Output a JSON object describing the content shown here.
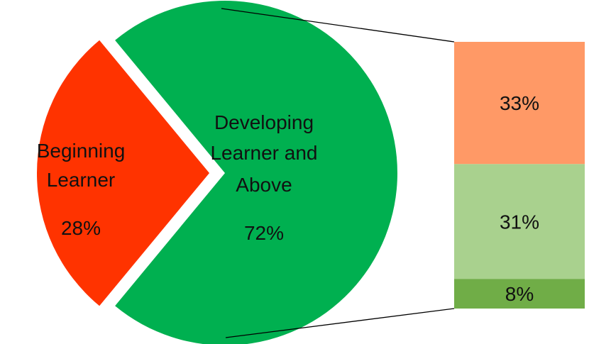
{
  "chart_data": {
    "type": "bar-of-pie",
    "pie": {
      "slices": [
        {
          "label_lines": [
            "Beginning",
            "Learner"
          ],
          "value_label": "28%",
          "value": 28,
          "color": "#ff3300",
          "exploded": true
        },
        {
          "label_lines": [
            "Developing",
            "Learner and",
            "Above"
          ],
          "value_label": "72%",
          "value": 72,
          "color": "#00b050",
          "exploded": false
        }
      ]
    },
    "breakdown_bar": {
      "of_slice": "Developing Learner and Above",
      "segments": [
        {
          "value_label": "33%",
          "value": 33,
          "color": "#ff9966"
        },
        {
          "value_label": "31%",
          "value": 31,
          "color": "#a9d18e"
        },
        {
          "value_label": "8%",
          "value": 8,
          "color": "#70ad47"
        }
      ]
    }
  }
}
